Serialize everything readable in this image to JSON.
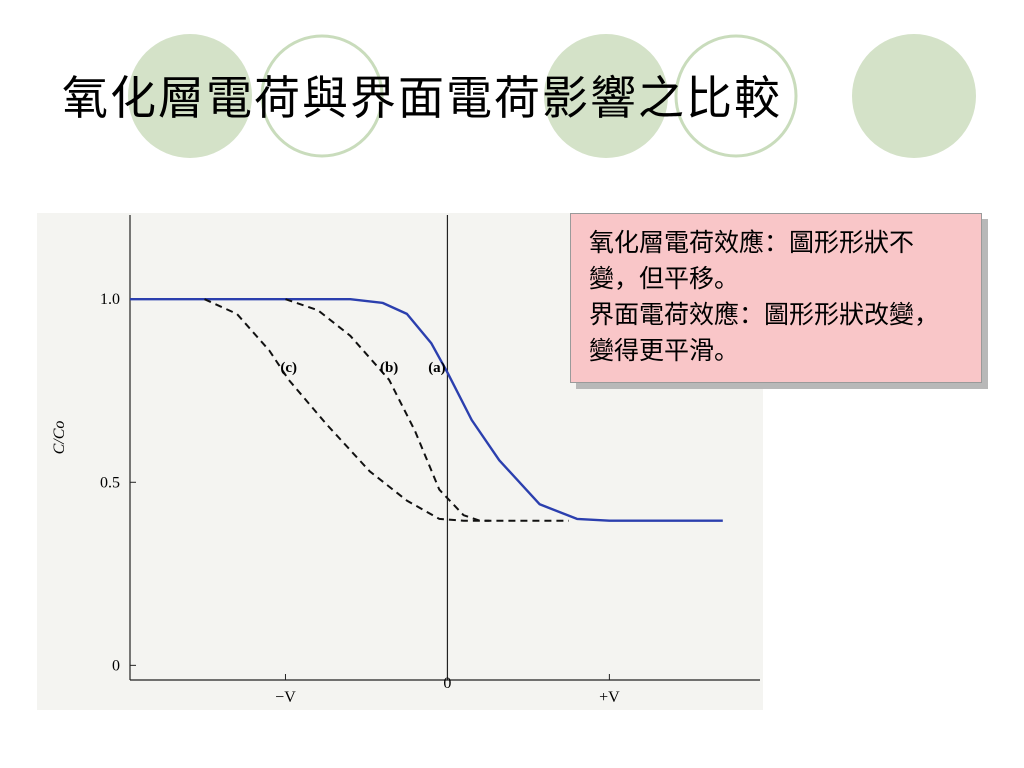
{
  "title": "氧化層電荷與界面電荷影響之比較",
  "note": [
    "氧化層電荷效應：圖形形狀不變，但平移。",
    "界面電荷效應：圖形形狀改變，變得更平滑。"
  ],
  "chart_data": {
    "type": "line",
    "y_label": "C/Co",
    "xlim": [
      -1.96,
      1.93
    ],
    "ylim": [
      -0.04,
      1.23
    ],
    "xticks": [
      {
        "value": -1,
        "label": "−V"
      },
      0,
      {
        "value": 1,
        "label": "+V"
      }
    ],
    "yticks": [
      0,
      0.5,
      {
        "value": 1,
        "label": "1.0"
      }
    ],
    "series": [
      {
        "name": "(a)",
        "color": "#2b3fae",
        "style": "solid",
        "x": [
          -1.96,
          -0.6,
          -0.4,
          -0.25,
          -0.1,
          0,
          0.15,
          0.32,
          0.57,
          0.8,
          1.0,
          1.7
        ],
        "values": [
          1.0,
          1.0,
          0.99,
          0.96,
          0.88,
          0.8,
          0.67,
          0.56,
          0.44,
          0.4,
          0.395,
          0.395
        ]
      },
      {
        "name": "(b)",
        "color": "#111111",
        "style": "dashed",
        "x": [
          -1.0,
          -0.8,
          -0.6,
          -0.36,
          -0.2,
          -0.05,
          0.1,
          0.2,
          0.75
        ],
        "values": [
          1.0,
          0.97,
          0.9,
          0.78,
          0.64,
          0.48,
          0.41,
          0.395,
          0.395
        ]
      },
      {
        "name": "(c)",
        "color": "#111111",
        "style": "dashed",
        "x": [
          -1.5,
          -1.3,
          -1.1,
          -0.98,
          -0.75,
          -0.48,
          -0.25,
          -0.05,
          0.1,
          0.26
        ],
        "values": [
          1.0,
          0.96,
          0.86,
          0.78,
          0.66,
          0.53,
          0.45,
          0.4,
          0.395,
          0.395
        ]
      }
    ]
  }
}
